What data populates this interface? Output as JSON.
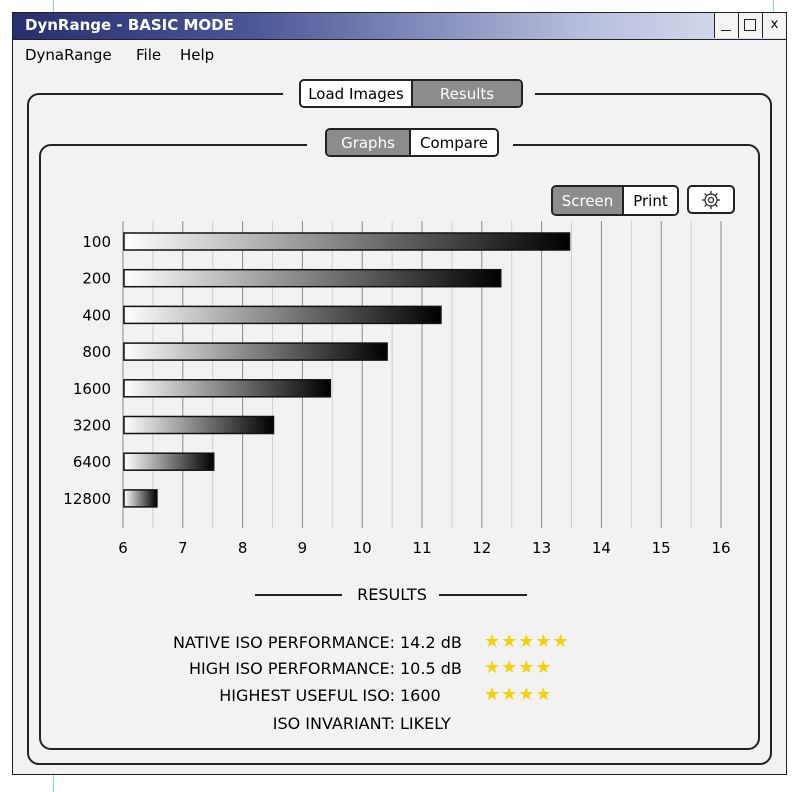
{
  "window": {
    "title": "DynRange - BASIC MODE",
    "min_label": "_",
    "close_label": "x"
  },
  "menu": {
    "items": [
      "DynaRange",
      "File",
      "Help"
    ]
  },
  "tabs": {
    "main": [
      {
        "label": "Load Images",
        "active": false
      },
      {
        "label": "Results",
        "active": true
      }
    ],
    "sub": [
      {
        "label": "Graphs",
        "active": true
      },
      {
        "label": "Compare",
        "active": false
      }
    ]
  },
  "view_toggle": [
    {
      "label": "Screen",
      "active": true
    },
    {
      "label": "Print",
      "active": false
    }
  ],
  "settings_icon": "gear-icon",
  "chart_data": {
    "type": "bar",
    "orientation": "horizontal",
    "categories": [
      "100",
      "200",
      "400",
      "800",
      "1600",
      "3200",
      "6400",
      "12800"
    ],
    "values": [
      13.4,
      12.25,
      11.25,
      10.35,
      9.4,
      8.45,
      7.45,
      6.5
    ],
    "xlim": [
      6,
      16
    ],
    "xticks": [
      6,
      7,
      8,
      9,
      10,
      11,
      12,
      13,
      14,
      15,
      16
    ],
    "grid": true,
    "bar_fill": "gradient white to black"
  },
  "results": {
    "title": "RESULTS",
    "rows": [
      {
        "label": "NATIVE ISO PERFORMANCE:",
        "value": "14.2 dB",
        "stars": 5
      },
      {
        "label": "HIGH ISO PERFORMANCE:",
        "value": "10.5 dB",
        "stars": 4
      },
      {
        "label": "HIGHEST USEFUL ISO:",
        "value": "1600",
        "stars": 4
      },
      {
        "label": "ISO INVARIANT:",
        "value": "LIKELY",
        "stars": 0
      }
    ],
    "star_color": "#f5d10a"
  },
  "colors": {
    "active_tab": "#8c8c8c",
    "title_bar_start": "#27306e"
  }
}
